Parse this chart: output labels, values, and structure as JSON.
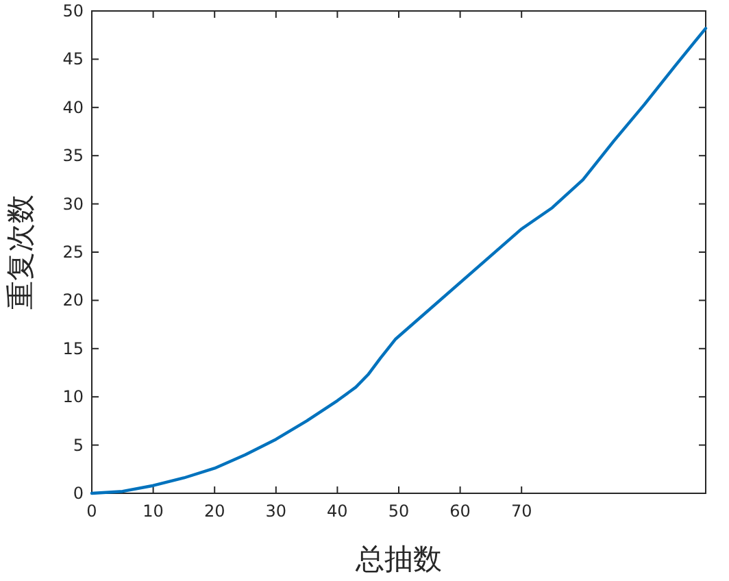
{
  "chart_data": {
    "type": "line",
    "xlabel": "总抽数",
    "ylabel": "重复次数",
    "x": [
      0,
      5,
      10,
      15,
      20,
      25,
      30,
      35,
      40,
      43,
      45,
      47,
      49.5,
      70,
      75,
      80,
      85,
      90,
      95,
      100
    ],
    "series": [
      {
        "color": "#0072bd",
        "values": [
          0,
          0.2,
          0.8,
          1.6,
          2.6,
          4.0,
          5.6,
          7.5,
          9.6,
          11.0,
          12.3,
          14.0,
          16.0,
          27.4,
          29.6,
          32.5,
          36.5,
          40.3,
          44.3,
          48.2
        ]
      }
    ],
    "xlim": [
      0,
      100
    ],
    "ylim": [
      0,
      50
    ],
    "xticks": [
      0,
      10,
      20,
      30,
      40,
      50,
      60,
      70
    ],
    "yticks": [
      0,
      5,
      10,
      15,
      20,
      25,
      30,
      35,
      40,
      45,
      50
    ],
    "grid": false,
    "marker": "none",
    "line_style": "solid"
  }
}
